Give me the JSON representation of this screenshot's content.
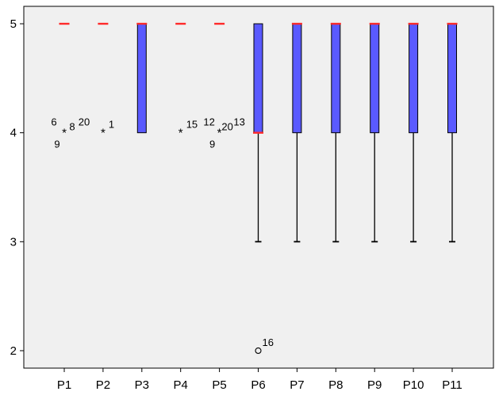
{
  "chart_data": {
    "type": "boxplot",
    "title": "",
    "xlabel": "",
    "ylabel": "",
    "ylim": [
      2,
      5
    ],
    "yticks": [
      "2",
      "3",
      "4",
      "5"
    ],
    "colors": {
      "box": "#5a5aff",
      "median": "#ff2a2a",
      "plot_bg": "#f0f0f0",
      "line": "#000000"
    },
    "categories": [
      "P1",
      "P2",
      "P3",
      "P4",
      "P5",
      "P6",
      "P7",
      "P8",
      "P9",
      "P10",
      "P11"
    ],
    "boxes": [
      {
        "name": "P1",
        "min": 5,
        "q1": 5,
        "median": 5,
        "q3": 5,
        "max": 5,
        "outliers": [
          {
            "value": 4,
            "symbol": "star",
            "labels": [
              "6",
              "8",
              "20",
              "9"
            ]
          }
        ]
      },
      {
        "name": "P2",
        "min": 5,
        "q1": 5,
        "median": 5,
        "q3": 5,
        "max": 5,
        "outliers": [
          {
            "value": 4,
            "symbol": "star",
            "labels": [
              "1"
            ]
          }
        ]
      },
      {
        "name": "P3",
        "min": 4,
        "q1": 4,
        "median": 5,
        "q3": 5,
        "max": 5,
        "outliers": []
      },
      {
        "name": "P4",
        "min": 5,
        "q1": 5,
        "median": 5,
        "q3": 5,
        "max": 5,
        "outliers": [
          {
            "value": 4,
            "symbol": "star",
            "labels": [
              "15"
            ]
          }
        ]
      },
      {
        "name": "P5",
        "min": 5,
        "q1": 5,
        "median": 5,
        "q3": 5,
        "max": 5,
        "outliers": [
          {
            "value": 4,
            "symbol": "star",
            "labels": [
              "12",
              "20",
              "13",
              "9"
            ]
          }
        ]
      },
      {
        "name": "P6",
        "min": 3,
        "q1": 4,
        "median": 4,
        "q3": 5,
        "max": 5,
        "outliers": [
          {
            "value": 2,
            "symbol": "circle",
            "labels": [
              "16"
            ]
          }
        ]
      },
      {
        "name": "P7",
        "min": 3,
        "q1": 4,
        "median": 5,
        "q3": 5,
        "max": 5,
        "outliers": []
      },
      {
        "name": "P8",
        "min": 3,
        "q1": 4,
        "median": 5,
        "q3": 5,
        "max": 5,
        "outliers": []
      },
      {
        "name": "P9",
        "min": 3,
        "q1": 4,
        "median": 5,
        "q3": 5,
        "max": 5,
        "outliers": []
      },
      {
        "name": "P10",
        "min": 3,
        "q1": 4,
        "median": 5,
        "q3": 5,
        "max": 5,
        "outliers": []
      },
      {
        "name": "P11",
        "min": 3,
        "q1": 4,
        "median": 5,
        "q3": 5,
        "max": 5,
        "outliers": []
      }
    ]
  }
}
